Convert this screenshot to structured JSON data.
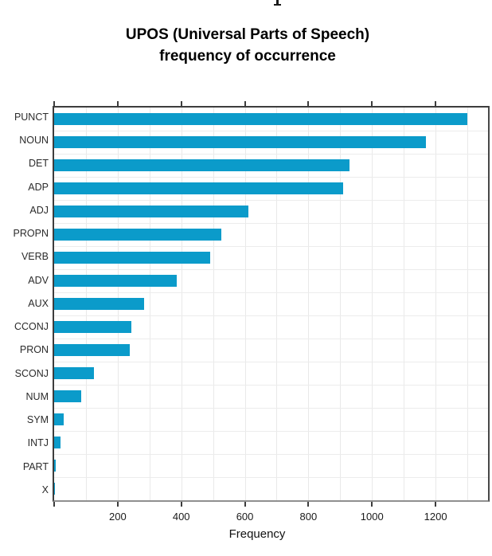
{
  "page": {
    "background": "#ffffff"
  },
  "title": {
    "line1": "UPOS (Universal Parts of Speech)",
    "line2": "frequency of occurrence"
  },
  "chart_data": {
    "type": "bar",
    "orientation": "horizontal",
    "title": "UPOS (Universal Parts of Speech) frequency of occurrence",
    "xlabel": "Frequency",
    "ylabel": "",
    "categories": [
      "PUNCT",
      "NOUN",
      "DET",
      "ADP",
      "ADJ",
      "PROPN",
      "VERB",
      "ADV",
      "AUX",
      "CCONJ",
      "PRON",
      "SCONJ",
      "NUM",
      "SYM",
      "INTJ",
      "PART",
      "X"
    ],
    "values": [
      1300,
      1170,
      928,
      908,
      612,
      527,
      490,
      385,
      284,
      242,
      237,
      125,
      84,
      30,
      19,
      6,
      1
    ],
    "xticks": [
      200,
      400,
      600,
      800,
      1000,
      1200
    ],
    "xtick_extra_unlabeled": [
      0
    ],
    "gridline_step": 100,
    "gridline_max": 1300,
    "xlim": [
      0,
      1365
    ],
    "grid": true,
    "legend": null,
    "bar_color": "#0b9bca",
    "grid_color": "#e9e9e9",
    "spine_color_dark": "#3d3d3d",
    "spine_color_bottom": "#8f8f8f"
  }
}
